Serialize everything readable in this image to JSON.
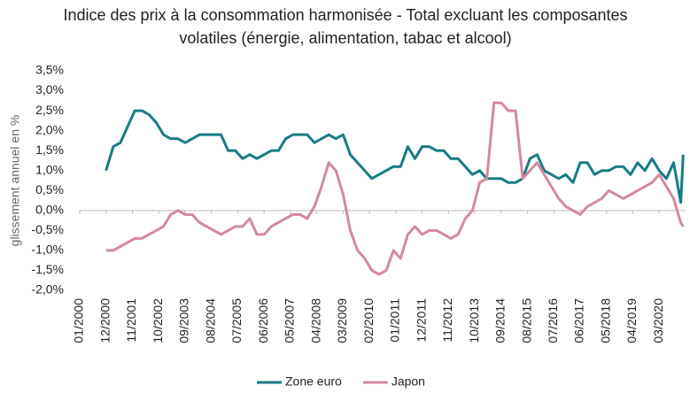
{
  "chart_data": {
    "type": "line",
    "title": "Indice des prix à la consommation harmonisée - Total excluant les composantes volatiles (énergie, alimentation, tabac et alcool)",
    "y_label": "glissement annuel en %",
    "x": [
      "12/2000",
      "03/2001",
      "06/2001",
      "09/2001",
      "12/2001",
      "03/2002",
      "06/2002",
      "09/2002",
      "12/2002",
      "03/2003",
      "06/2003",
      "09/2003",
      "12/2003",
      "03/2004",
      "06/2004",
      "09/2004",
      "12/2004",
      "03/2005",
      "06/2005",
      "09/2005",
      "12/2005",
      "03/2006",
      "06/2006",
      "09/2006",
      "12/2006",
      "03/2007",
      "06/2007",
      "09/2007",
      "12/2007",
      "03/2008",
      "06/2008",
      "09/2008",
      "12/2008",
      "03/2009",
      "06/2009",
      "09/2009",
      "12/2009",
      "03/2010",
      "06/2010",
      "09/2010",
      "12/2010",
      "03/2011",
      "06/2011",
      "09/2011",
      "12/2011",
      "03/2012",
      "06/2012",
      "09/2012",
      "12/2012",
      "03/2013",
      "06/2013",
      "09/2013",
      "12/2013",
      "03/2014",
      "06/2014",
      "09/2014",
      "12/2014",
      "03/2015",
      "06/2015",
      "09/2015",
      "12/2015",
      "03/2016",
      "06/2016",
      "09/2016",
      "12/2016",
      "03/2017",
      "06/2017",
      "09/2017",
      "12/2017",
      "03/2018",
      "06/2018",
      "09/2018",
      "12/2018",
      "03/2019",
      "06/2019",
      "09/2019",
      "12/2019",
      "03/2020",
      "06/2020",
      "09/2020",
      "12/2020",
      "01/2021"
    ],
    "series": [
      {
        "name": "Zone euro",
        "color": "#177c84",
        "values": [
          1.0,
          1.6,
          1.7,
          2.1,
          2.5,
          2.5,
          2.4,
          2.2,
          1.9,
          1.8,
          1.8,
          1.7,
          1.8,
          1.9,
          1.9,
          1.9,
          1.9,
          1.5,
          1.5,
          1.3,
          1.4,
          1.3,
          1.4,
          1.5,
          1.5,
          1.8,
          1.9,
          1.9,
          1.9,
          1.7,
          1.8,
          1.9,
          1.8,
          1.9,
          1.4,
          1.2,
          1.0,
          0.8,
          0.9,
          1.0,
          1.1,
          1.1,
          1.6,
          1.3,
          1.6,
          1.6,
          1.5,
          1.5,
          1.3,
          1.3,
          1.1,
          0.9,
          1.0,
          0.8,
          0.8,
          0.8,
          0.7,
          0.7,
          0.8,
          1.3,
          1.4,
          1.0,
          0.9,
          0.8,
          0.9,
          0.7,
          1.2,
          1.2,
          0.9,
          1.0,
          1.0,
          1.1,
          1.1,
          0.9,
          1.2,
          1.0,
          1.3,
          1.0,
          0.8,
          1.2,
          0.2,
          1.4
        ]
      },
      {
        "name": "Japon",
        "color": "#d4899c",
        "values": [
          -1.0,
          -1.0,
          -0.9,
          -0.8,
          -0.7,
          -0.7,
          -0.6,
          -0.5,
          -0.4,
          -0.1,
          0.0,
          -0.1,
          -0.1,
          -0.3,
          -0.4,
          -0.5,
          -0.6,
          -0.5,
          -0.4,
          -0.4,
          -0.2,
          -0.6,
          -0.6,
          -0.4,
          -0.3,
          -0.2,
          -0.1,
          -0.1,
          -0.2,
          0.1,
          0.6,
          1.2,
          1.0,
          0.4,
          -0.5,
          -1.0,
          -1.2,
          -1.5,
          -1.6,
          -1.5,
          -1.0,
          -1.2,
          -0.6,
          -0.4,
          -0.6,
          -0.5,
          -0.5,
          -0.6,
          -0.7,
          -0.6,
          -0.2,
          0.0,
          0.7,
          0.8,
          2.7,
          2.7,
          2.5,
          2.5,
          0.8,
          1.0,
          1.2,
          0.9,
          0.6,
          0.3,
          0.1,
          0.0,
          -0.1,
          0.1,
          0.2,
          0.3,
          0.5,
          0.4,
          0.3,
          0.4,
          0.5,
          0.6,
          0.7,
          0.9,
          0.6,
          0.3,
          -0.3,
          -0.4
        ]
      }
    ],
    "xlim": [
      "01/2000",
      "02/2021"
    ],
    "xticks": [
      "01/2000",
      "12/2000",
      "11/2001",
      "10/2002",
      "09/2003",
      "08/2004",
      "07/2005",
      "06/2006",
      "05/2007",
      "04/2008",
      "03/2009",
      "02/2010",
      "01/2011",
      "12/2011",
      "11/2012",
      "10/2013",
      "09/2014",
      "08/2015",
      "07/2016",
      "06/2017",
      "05/2018",
      "04/2019",
      "03/2020"
    ],
    "ylim": [
      -2.0,
      3.5
    ],
    "yticks": [
      {
        "value": -2.0,
        "label": "-2,0%"
      },
      {
        "value": -1.5,
        "label": "-1,5%"
      },
      {
        "value": -1.0,
        "label": "-1,0%"
      },
      {
        "value": -0.5,
        "label": "-0,5%"
      },
      {
        "value": 0.0,
        "label": "0,0%"
      },
      {
        "value": 0.5,
        "label": "0,5%"
      },
      {
        "value": 1.0,
        "label": "1,0%"
      },
      {
        "value": 1.5,
        "label": "1,5%"
      },
      {
        "value": 2.0,
        "label": "2,0%"
      },
      {
        "value": 2.5,
        "label": "2,5%"
      },
      {
        "value": 3.0,
        "label": "3,0%"
      },
      {
        "value": 3.5,
        "label": "3,5%"
      }
    ],
    "legend": "bottom"
  }
}
